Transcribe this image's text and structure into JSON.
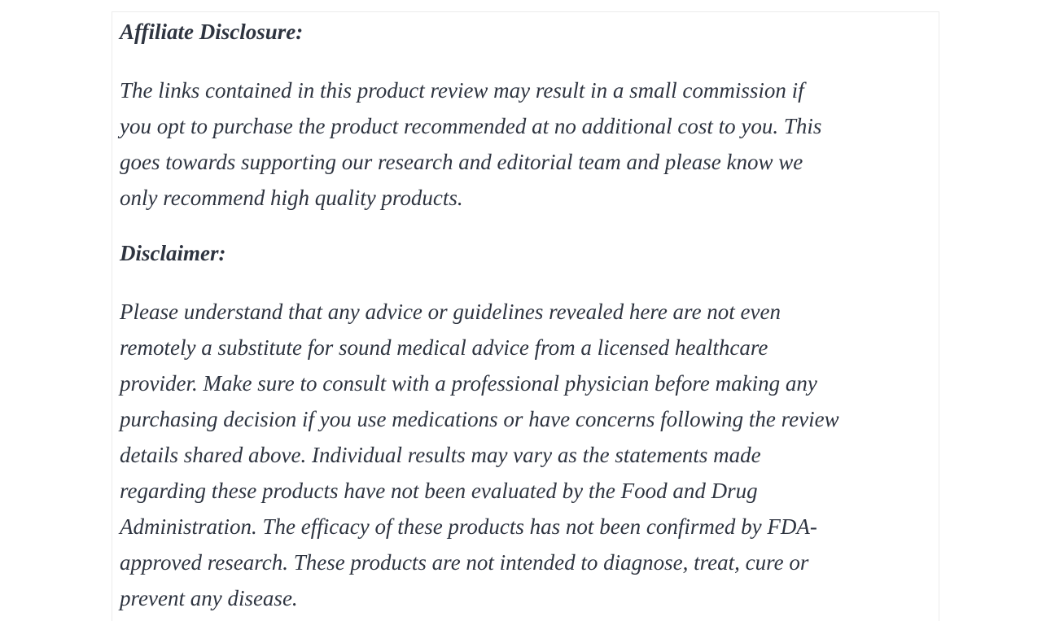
{
  "page": {
    "background_color": "#ffffff",
    "card_border_color": "#ececec",
    "text_color": "#2e3440"
  },
  "article": {
    "sections": [
      {
        "heading": "Affiliate Disclosure:",
        "lines": [
          "The links contained in this product review may result in a small commission if",
          "you opt to purchase the product recommended at no additional cost to you. This",
          "goes towards supporting our research and editorial team and please know we",
          "only recommend high quality products."
        ]
      },
      {
        "heading": "Disclaimer:",
        "lines": [
          "Please understand that any advice or guidelines revealed here are not even",
          "remotely a substitute for sound medical advice from a licensed healthcare",
          "provider. Make sure to consult with a professional physician before making any",
          "purchasing decision if you use medications or have concerns following the review",
          "details shared above. Individual results may vary as the statements made",
          "regarding these products have not been evaluated by the Food and Drug",
          "Administration. The efficacy of these products has not been confirmed by FDA-",
          "approved research. These products are not intended to diagnose, treat, cure or",
          "prevent any disease."
        ]
      }
    ]
  }
}
